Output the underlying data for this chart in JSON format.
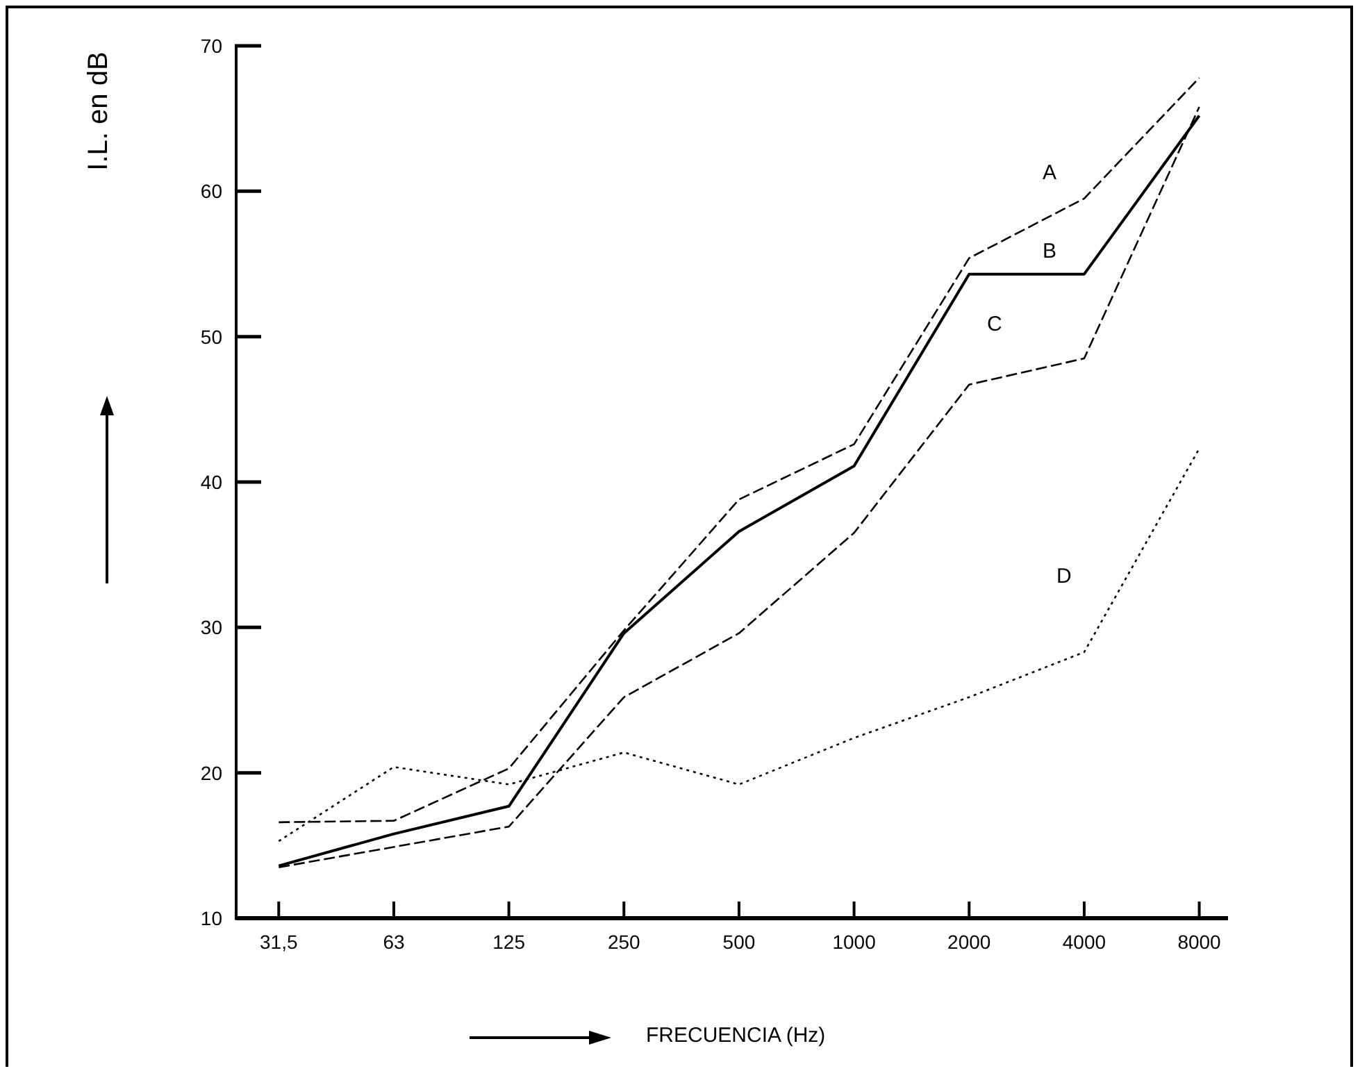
{
  "chart_data": {
    "type": "line",
    "xlabel": "FRECUENCIA (Hz)",
    "ylabel": "I.L. en dB",
    "categories": [
      "31,5",
      "63",
      "125",
      "250",
      "500",
      "1000",
      "2000",
      "4000",
      "8000"
    ],
    "ylim": [
      10,
      70
    ],
    "yticks": [
      10,
      20,
      30,
      40,
      50,
      60,
      70
    ],
    "grid": false,
    "legend": false,
    "marker": "none",
    "series": [
      {
        "name": "A",
        "color": "#000000",
        "line_style": "dashed",
        "values": [
          16.6,
          16.7,
          20.3,
          29.8,
          38.8,
          42.6,
          55.4,
          59.5,
          67.8
        ]
      },
      {
        "name": "B",
        "color": "#000000",
        "line_style": "solid",
        "values": [
          13.6,
          15.8,
          17.7,
          29.6,
          36.6,
          41.1,
          54.3,
          54.3,
          65.2
        ]
      },
      {
        "name": "C",
        "color": "#000000",
        "line_style": "dashed",
        "values": [
          13.5,
          14.9,
          16.3,
          25.2,
          29.6,
          36.5,
          46.7,
          48.5,
          65.8
        ]
      },
      {
        "name": "D",
        "color": "#000000",
        "line_style": "dotted",
        "values": [
          15.3,
          20.4,
          19.2,
          21.4,
          19.2,
          22.4,
          25.2,
          28.3,
          42.3
        ]
      }
    ]
  }
}
